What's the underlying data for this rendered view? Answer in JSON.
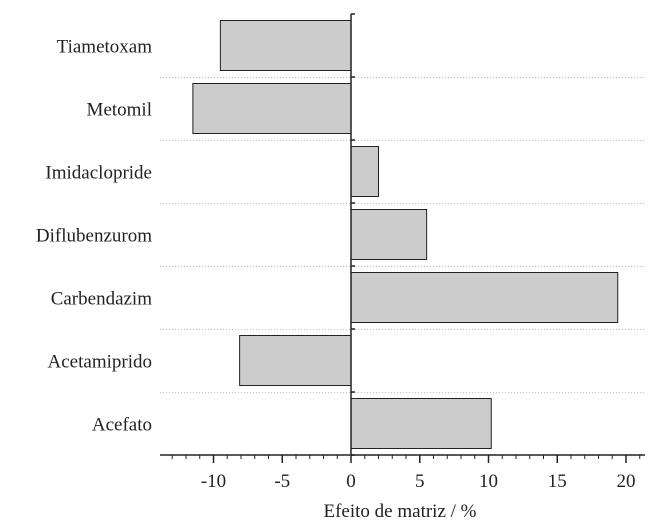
{
  "chart_data": {
    "type": "bar",
    "orientation": "horizontal",
    "categories": [
      "Tiametoxam",
      "Metomil",
      "Imidaclopride",
      "Diflubenzurom",
      "Carbendazim",
      "Acetamiprido",
      "Acefato"
    ],
    "values": [
      -9.5,
      -11.5,
      2.0,
      5.5,
      19.4,
      -8.1,
      10.2
    ],
    "xlabel": "Efeito de matriz / %",
    "ylabel": "",
    "xlim": [
      -14,
      21
    ],
    "xticks": [
      -10,
      -5,
      0,
      5,
      10,
      15,
      20
    ],
    "xtick_labels": [
      "-10",
      "-5",
      "0",
      "5",
      "10",
      "15",
      "20"
    ],
    "minor_tick_step": 1,
    "grid": "horizontal dotted separators between categories",
    "colors": {
      "bar_fill": "#cccccc",
      "bar_stroke": "#222222",
      "axis": "#222222",
      "grid": "#bdbdbd"
    }
  }
}
